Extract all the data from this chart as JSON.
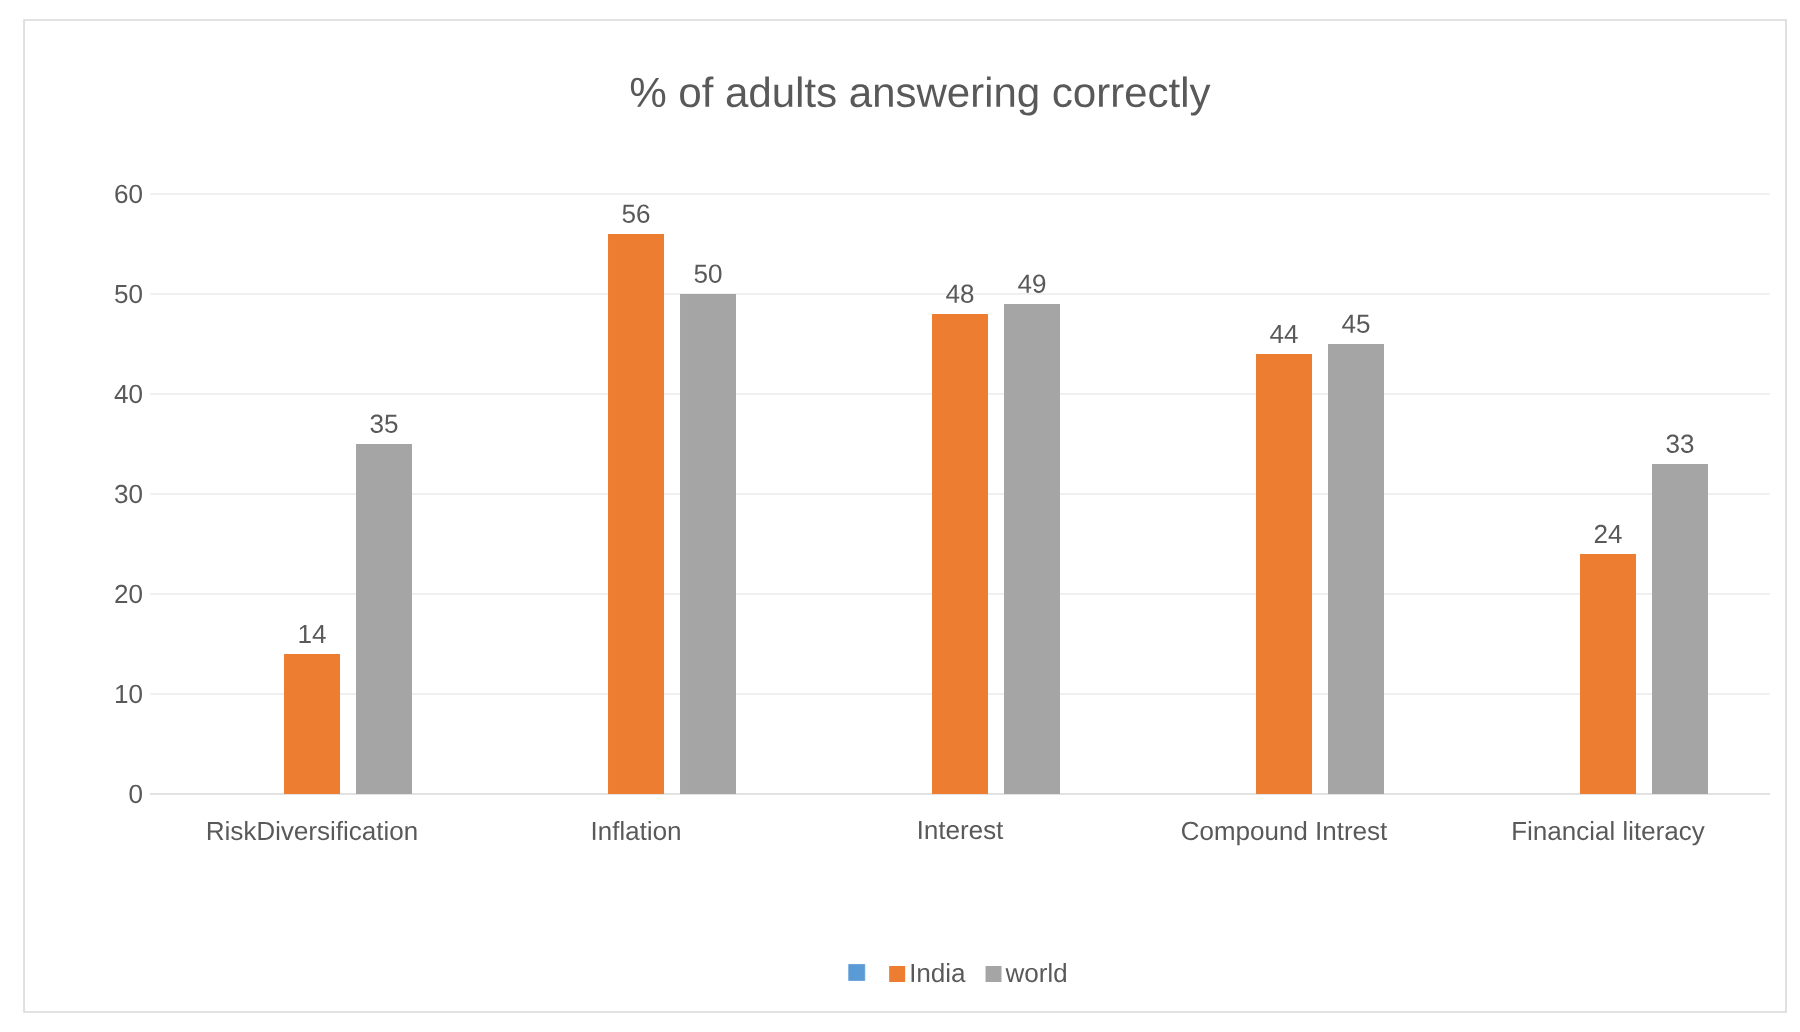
{
  "chart_data": {
    "type": "bar",
    "title": "% of adults answering correctly",
    "categories": [
      "RiskDiversification",
      "Inflation",
      "Interest",
      "Compound Intrest",
      "Financial literacy"
    ],
    "series": [
      {
        "color": "#5b9bd5",
        "values": [
          null,
          null,
          null,
          null,
          null
        ]
      },
      {
        "name": "India",
        "color": "#ed7d31",
        "values": [
          14,
          56,
          48,
          44,
          24
        ]
      },
      {
        "name": "world",
        "color": "#a5a5a5",
        "values": [
          35,
          50,
          49,
          45,
          33
        ]
      }
    ],
    "ylim": [
      0,
      60
    ],
    "yticks": [
      0,
      10,
      20,
      30,
      40,
      50,
      60
    ],
    "grid": "y",
    "legend": "bottom",
    "data_labels": true
  }
}
